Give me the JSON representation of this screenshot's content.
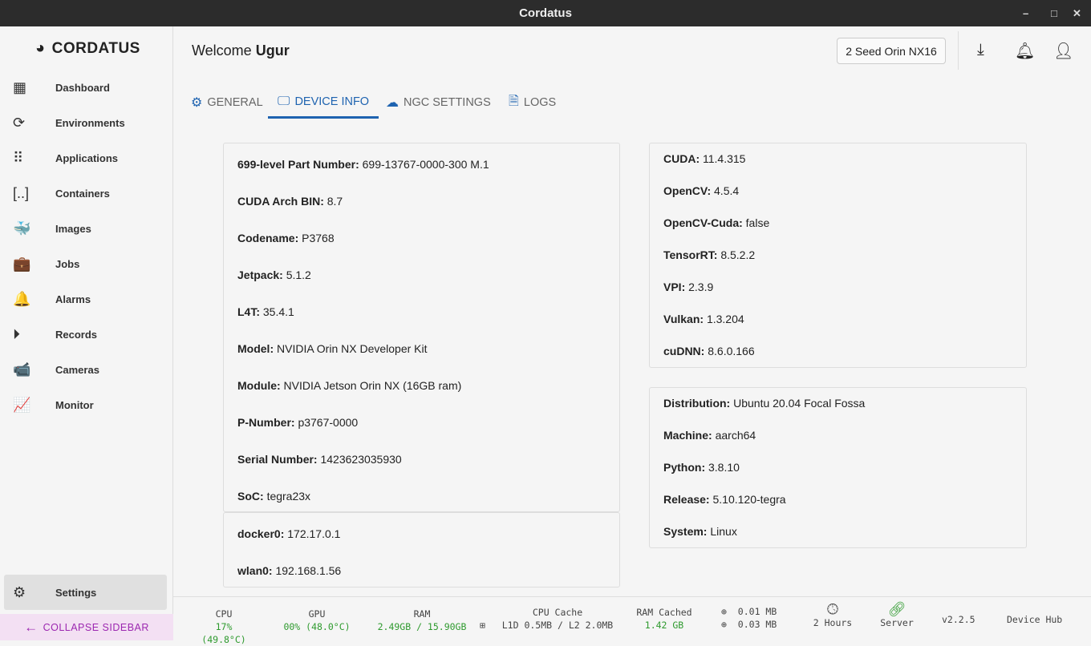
{
  "window": {
    "title": "Cordatus",
    "minimize": "–",
    "maximize": "□",
    "close": "✕"
  },
  "sidebar": {
    "logo": "CORDATUS",
    "items": [
      {
        "label": "Dashboard",
        "icon": "dashboard-icon",
        "glyph": "▦"
      },
      {
        "label": "Environments",
        "icon": "sync-icon",
        "glyph": "⟳"
      },
      {
        "label": "Applications",
        "icon": "apps-grid-icon",
        "glyph": "⠿"
      },
      {
        "label": "Containers",
        "icon": "container-brackets-icon",
        "glyph": "[..]"
      },
      {
        "label": "Images",
        "icon": "docker-whale-icon",
        "glyph": "🐳"
      },
      {
        "label": "Jobs",
        "icon": "briefcase-icon",
        "glyph": "💼"
      },
      {
        "label": "Alarms",
        "icon": "bell-icon",
        "glyph": "🔔"
      },
      {
        "label": "Records",
        "icon": "play-circle-icon",
        "glyph": "⏵"
      },
      {
        "label": "Cameras",
        "icon": "cctv-icon",
        "glyph": "📹"
      },
      {
        "label": "Monitor",
        "icon": "chart-line-icon",
        "glyph": "📈"
      }
    ],
    "settings": "Settings",
    "collapse": "COLLAPSE SIDEBAR"
  },
  "header": {
    "welcome": "Welcome",
    "user": "Ugur",
    "device": "2 Seed Orin NX16"
  },
  "tabs": [
    {
      "label": "GENERAL",
      "glyph": "⚙"
    },
    {
      "label": "DEVICE INFO",
      "glyph": "🖵"
    },
    {
      "label": "NGC SETTINGS",
      "glyph": "☁"
    },
    {
      "label": "LOGS",
      "glyph": "🗎"
    }
  ],
  "hardware": [
    {
      "k": "699-level Part Number:",
      "v": "699-13767-0000-300 M.1"
    },
    {
      "k": "CUDA Arch BIN:",
      "v": "8.7"
    },
    {
      "k": "Codename:",
      "v": "P3768"
    },
    {
      "k": "Jetpack:",
      "v": "5.1.2"
    },
    {
      "k": "L4T:",
      "v": "35.4.1"
    },
    {
      "k": "Model:",
      "v": "NVIDIA Orin NX Developer Kit"
    },
    {
      "k": "Module:",
      "v": "NVIDIA Jetson Orin NX (16GB ram)"
    },
    {
      "k": "P-Number:",
      "v": "p3767-0000"
    },
    {
      "k": "Serial Number:",
      "v": "1423623035930"
    },
    {
      "k": "SoC:",
      "v": "tegra23x"
    }
  ],
  "network": [
    {
      "k": "docker0:",
      "v": "172.17.0.1"
    },
    {
      "k": "wlan0:",
      "v": "192.168.1.56"
    }
  ],
  "libraries": [
    {
      "k": "CUDA:",
      "v": "11.4.315"
    },
    {
      "k": "OpenCV:",
      "v": "4.5.4"
    },
    {
      "k": "OpenCV-Cuda:",
      "v": "false"
    },
    {
      "k": "TensorRT:",
      "v": "8.5.2.2"
    },
    {
      "k": "VPI:",
      "v": "2.3.9"
    },
    {
      "k": "Vulkan:",
      "v": "1.3.204"
    },
    {
      "k": "cuDNN:",
      "v": "8.6.0.166"
    }
  ],
  "platform": [
    {
      "k": "Distribution:",
      "v": "Ubuntu 20.04 Focal Fossa"
    },
    {
      "k": "Machine:",
      "v": "aarch64"
    },
    {
      "k": "Python:",
      "v": "3.8.10"
    },
    {
      "k": "Release:",
      "v": "5.10.120-tegra"
    },
    {
      "k": "System:",
      "v": "Linux"
    }
  ],
  "footer": {
    "cpu_label": "CPU",
    "cpu": "17% (49.8°C)",
    "gpu_label": "GPU",
    "gpu": "00% (48.0°C)",
    "ram_label": "RAM",
    "ram": "2.49GB / 15.90GB",
    "cache_label": "CPU Cache",
    "cache": "L1D 0.5MB / L2 2.0MB",
    "ramc_label": "RAM Cached",
    "ramc": "1.42 GB",
    "down": "0.01 MB",
    "up": "0.03 MB",
    "uptime": "2 Hours",
    "server": "Server",
    "version": "v2.2.5",
    "hub": "Device Hub"
  },
  "colors": {
    "accent": "#1e63b0",
    "ok": "#2e9a2e",
    "collapse": "#9c27b0"
  }
}
